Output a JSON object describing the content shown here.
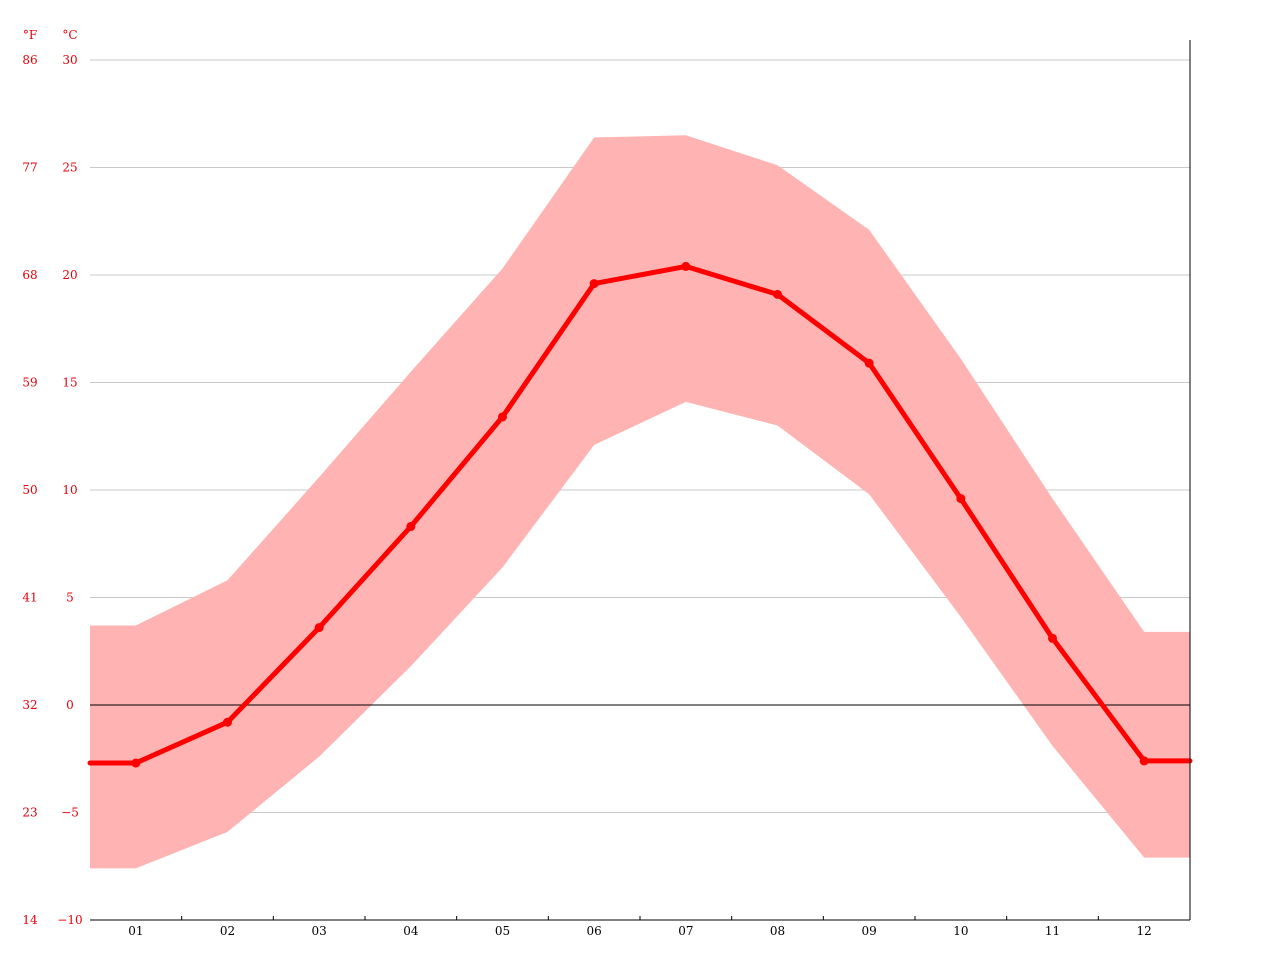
{
  "chart_data": {
    "type": "line",
    "title": "",
    "xlabel": "",
    "ylabel": "",
    "units": {
      "fahrenheit_label": "°F",
      "celsius_label": "°C"
    },
    "categories": [
      "01",
      "02",
      "03",
      "04",
      "05",
      "06",
      "07",
      "08",
      "09",
      "10",
      "11",
      "12"
    ],
    "y_ticks_celsius": [
      "30",
      "25",
      "20",
      "15",
      "10",
      "5",
      "0",
      "−5",
      "−10"
    ],
    "y_ticks_fahrenheit": [
      "86",
      "77",
      "68",
      "59",
      "50",
      "41",
      "32",
      "23",
      "14"
    ],
    "ylim": [
      -10,
      30
    ],
    "grid": true,
    "colors": {
      "line": "#ff0000",
      "band": "#ffb3b3",
      "axis_text": "#e8000b",
      "grid": "#c8c8c8"
    },
    "series": [
      {
        "values": [
          -2.7,
          -0.8,
          3.6,
          8.3,
          13.4,
          19.6,
          20.4,
          19.1,
          15.9,
          9.6,
          3.1,
          -2.6
        ]
      },
      {
        "values": [
          -7.6,
          -5.9,
          -2.4,
          1.8,
          6.4,
          12.1,
          14.1,
          13.0,
          9.8,
          4.1,
          -1.9,
          -7.1
        ]
      },
      {
        "values": [
          3.7,
          5.8,
          10.6,
          15.5,
          20.3,
          26.4,
          26.5,
          25.1,
          22.1,
          16.1,
          9.6,
          3.4
        ]
      }
    ]
  }
}
